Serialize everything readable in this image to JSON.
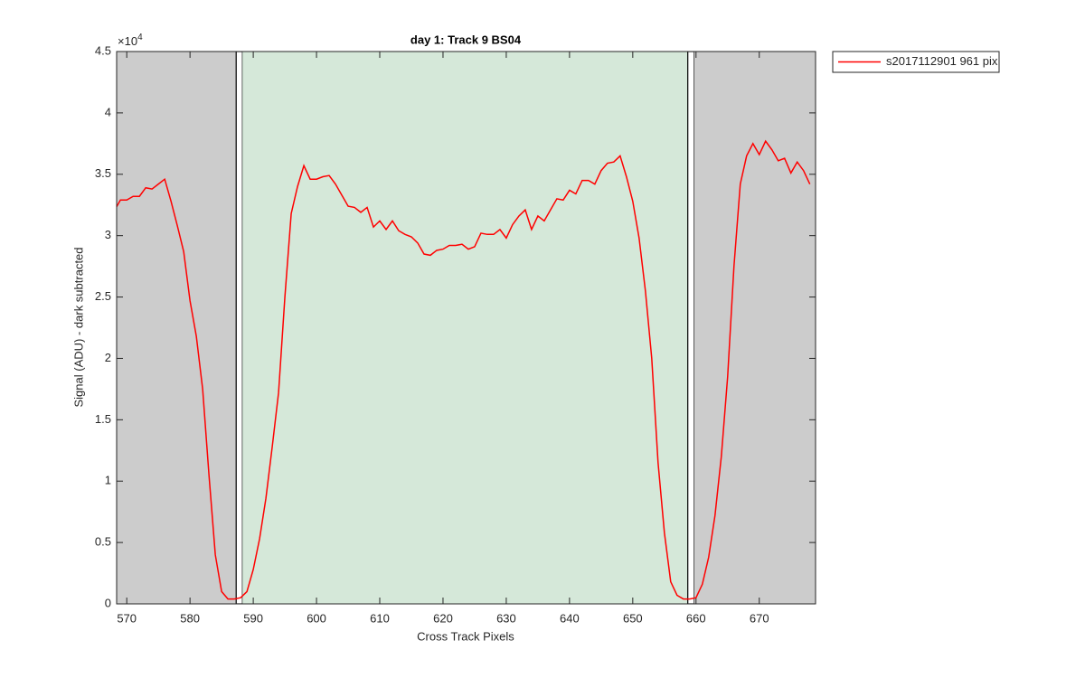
{
  "chart_data": {
    "type": "line",
    "title": "day 1: Track 9  BS04",
    "x_label": "Cross Track Pixels",
    "y_label": "Signal (ADU) - dark subtracted",
    "y_multiplier": {
      "base": "×10",
      "exponent": "4"
    },
    "xlim": [
      568.4,
      678.9
    ],
    "ylim": [
      0,
      45000
    ],
    "xticks": [
      570,
      580,
      590,
      600,
      610,
      620,
      630,
      640,
      650,
      660,
      670
    ],
    "yticks": [
      0,
      {
        "value": 5000,
        "label": "0.5"
      },
      {
        "value": 10000,
        "label": "1"
      },
      {
        "value": 15000,
        "label": "1.5"
      },
      {
        "value": 20000,
        "label": "2"
      },
      {
        "value": 25000,
        "label": "2.5"
      },
      {
        "value": 30000,
        "label": "3"
      },
      {
        "value": 35000,
        "label": "3.5"
      },
      {
        "value": 40000,
        "label": "4"
      },
      {
        "value": 45000,
        "label": "4.5"
      }
    ],
    "regions": [
      {
        "x0": 568.4,
        "x1": 587.3,
        "color": "#cccccc"
      },
      {
        "x0": 587.3,
        "x1": 588.3,
        "color": "#ffffff",
        "edge": "#000000"
      },
      {
        "x0": 588.3,
        "x1": 658.7,
        "color": "#d5e8d9"
      },
      {
        "x0": 658.7,
        "x1": 659.7,
        "color": "#ffffff",
        "edge": "#000000"
      },
      {
        "x0": 659.7,
        "x1": 678.9,
        "color": "#cccccc"
      }
    ],
    "legend": "outside-top-right",
    "x": [
      568,
      569,
      570,
      571,
      572,
      573,
      574,
      575,
      576,
      577,
      578,
      579,
      580,
      581,
      582,
      583,
      584,
      585,
      586,
      587,
      588,
      589,
      590,
      591,
      592,
      593,
      594,
      595,
      596,
      597,
      598,
      599,
      600,
      601,
      602,
      603,
      604,
      605,
      606,
      607,
      608,
      609,
      610,
      611,
      612,
      613,
      614,
      615,
      616,
      617,
      618,
      619,
      620,
      621,
      622,
      623,
      624,
      625,
      626,
      627,
      628,
      629,
      630,
      631,
      632,
      633,
      634,
      635,
      636,
      637,
      638,
      639,
      640,
      641,
      642,
      643,
      644,
      645,
      646,
      647,
      648,
      649,
      650,
      651,
      652,
      653,
      654,
      655,
      656,
      657,
      658,
      659,
      660,
      661,
      662,
      663,
      664,
      665,
      666,
      667,
      668,
      669,
      670,
      671,
      672,
      673,
      674,
      675,
      676,
      677,
      678
    ],
    "series": [
      {
        "name": "s2017112901 961 pix",
        "color": "#ff0000",
        "values": [
          32000,
          32900,
          32900,
          33200,
          33200,
          33900,
          33800,
          34200,
          34600,
          32800,
          30800,
          28700,
          24700,
          21800,
          17500,
          10500,
          4000,
          1000,
          400,
          400,
          500,
          1000,
          2800,
          5300,
          8600,
          12800,
          17200,
          25000,
          31800,
          34000,
          35700,
          34600,
          34600,
          34800,
          34900,
          34200,
          33300,
          32400,
          32300,
          31900,
          32300,
          30700,
          31200,
          30500,
          31200,
          30400,
          30100,
          29900,
          29400,
          28500,
          28400,
          28800,
          28900,
          29200,
          29200,
          29300,
          28900,
          29100,
          30200,
          30100,
          30100,
          30500,
          29800,
          30900,
          31600,
          32100,
          30500,
          31600,
          31200,
          32100,
          33000,
          32900,
          33700,
          33400,
          34500,
          34500,
          34200,
          35300,
          35900,
          36000,
          36500,
          34800,
          32800,
          29800,
          25500,
          20000,
          11500,
          5800,
          1800,
          700,
          400,
          400,
          500,
          1600,
          3800,
          7200,
          12000,
          18500,
          27500,
          34200,
          36500,
          37500,
          36600,
          37700,
          37000,
          36100,
          36300,
          35100,
          36000,
          35300,
          34200
        ]
      }
    ]
  }
}
